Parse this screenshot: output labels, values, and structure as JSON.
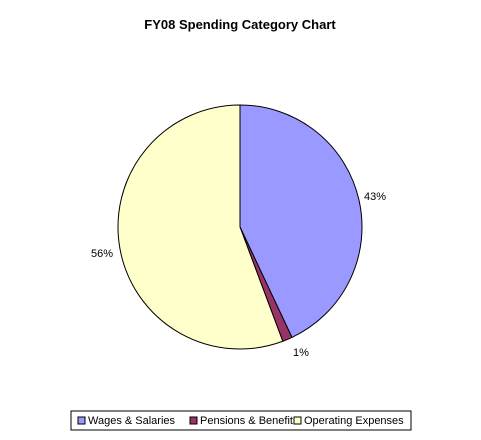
{
  "chart_data": {
    "type": "pie",
    "title": "FY08 Spending Category Chart",
    "slices": [
      {
        "label": "Wages & Salaries",
        "value": 43,
        "data_label": "43%",
        "color": "#9999FF"
      },
      {
        "label": "Pensions & Benefits",
        "value": 1.3,
        "data_label": "1%",
        "color": "#993366"
      },
      {
        "label": "Operating Expenses",
        "value": 55.7,
        "data_label": "56%",
        "color": "#FFFFCC"
      }
    ],
    "start_angle_deg": 0,
    "direction": "clockwise",
    "legend_position": "bottom"
  }
}
